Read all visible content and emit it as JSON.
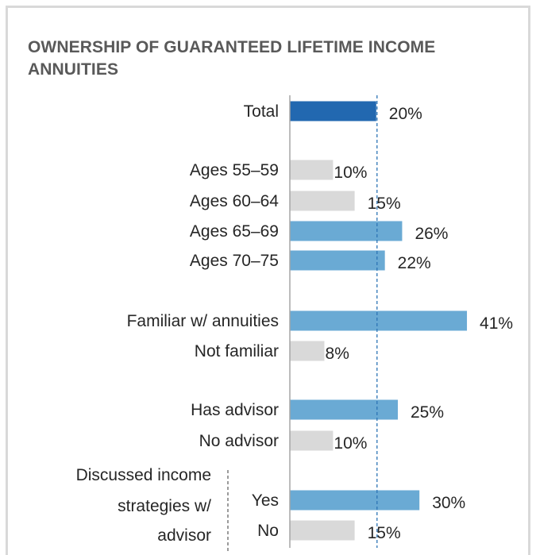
{
  "chart_data": {
    "type": "bar",
    "orientation": "horizontal",
    "title": "OWNERSHIP OF GUARANTEED LIFETIME INCOME ANNUITIES",
    "value_format": "percent",
    "reference_line": {
      "value": 20,
      "style": "dashed",
      "color": "#2e75b6"
    },
    "colors": {
      "total": "#2268b0",
      "above_average": "#6aaad4",
      "below_average": "#d9d9d9",
      "axis": "#a6a6a6"
    },
    "bars": [
      {
        "label": "Total",
        "value": 20,
        "group": "total",
        "color_key": "total"
      },
      {
        "label": "Ages 55–59",
        "value": 10,
        "group": "age",
        "color_key": "below_average"
      },
      {
        "label": "Ages 60–64",
        "value": 15,
        "group": "age",
        "color_key": "below_average"
      },
      {
        "label": "Ages 65–69",
        "value": 26,
        "group": "age",
        "color_key": "above_average"
      },
      {
        "label": "Ages 70–75",
        "value": 22,
        "group": "age",
        "color_key": "above_average"
      },
      {
        "label": "Familiar w/ annuities",
        "value": 41,
        "group": "familiarity",
        "color_key": "above_average"
      },
      {
        "label": "Not familiar",
        "value": 8,
        "group": "familiarity",
        "color_key": "below_average"
      },
      {
        "label": "Has advisor",
        "value": 25,
        "group": "advisor",
        "color_key": "above_average"
      },
      {
        "label": "No advisor",
        "value": 10,
        "group": "advisor",
        "color_key": "below_average"
      },
      {
        "label": "Yes",
        "value": 30,
        "group": "discussed",
        "color_key": "above_average"
      },
      {
        "label": "No",
        "value": 15,
        "group": "discussed",
        "color_key": "below_average"
      }
    ],
    "group_labels": [
      {
        "group": "discussed",
        "lines": [
          "Discussed income",
          "strategies w/",
          "advisor"
        ]
      }
    ]
  }
}
